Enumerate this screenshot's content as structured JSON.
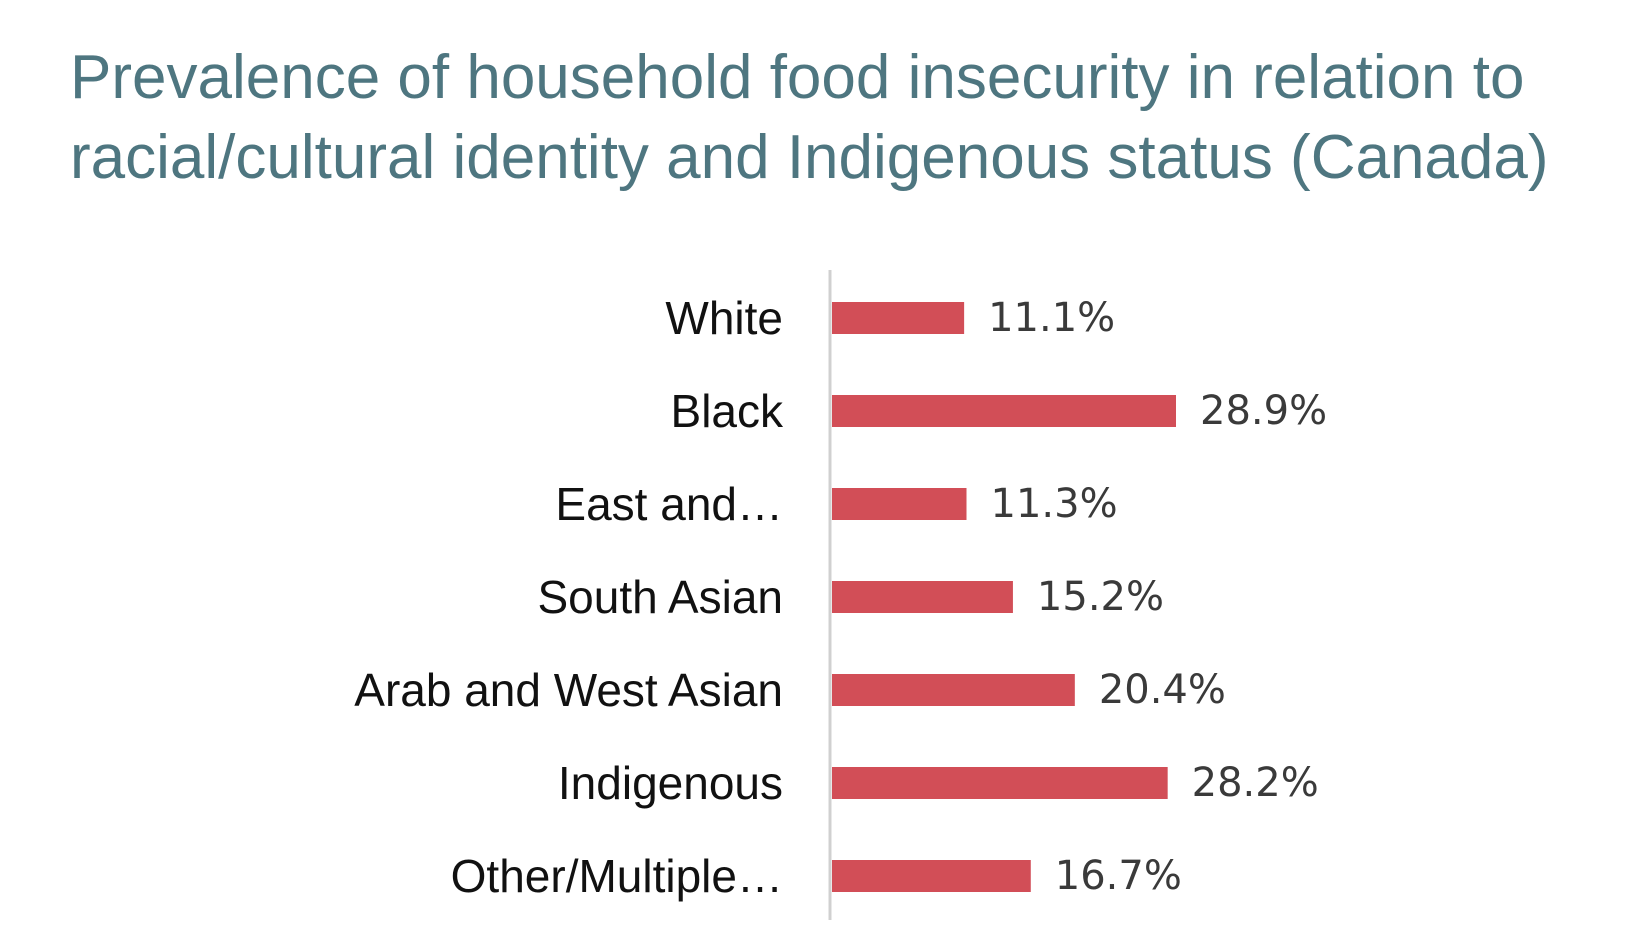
{
  "title": {
    "line1": "Prevalence of household food insecurity in relation to",
    "line2": "racial/cultural identity and Indigenous status (Canada)"
  },
  "colors": {
    "title": "#4e7680",
    "bar": "#d24e57",
    "axis": "#d0d0d0"
  },
  "chart_data": {
    "type": "bar",
    "orientation": "horizontal",
    "title": "Prevalence of household food insecurity in relation to racial/cultural identity and Indigenous status (Canada)",
    "categories": [
      "White",
      "Black",
      "East and…",
      "South Asian",
      "Arab and West Asian",
      "Indigenous",
      "Other/Multiple…"
    ],
    "values": [
      11.1,
      28.9,
      11.3,
      15.2,
      20.4,
      28.2,
      16.7
    ],
    "value_labels": [
      "11.1%",
      "28.9%",
      "11.3%",
      "15.2%",
      "20.4%",
      "28.2%",
      "16.7%"
    ],
    "unit": "%",
    "xlim": [
      0,
      28.9
    ],
    "grid": false,
    "legend": "none"
  }
}
